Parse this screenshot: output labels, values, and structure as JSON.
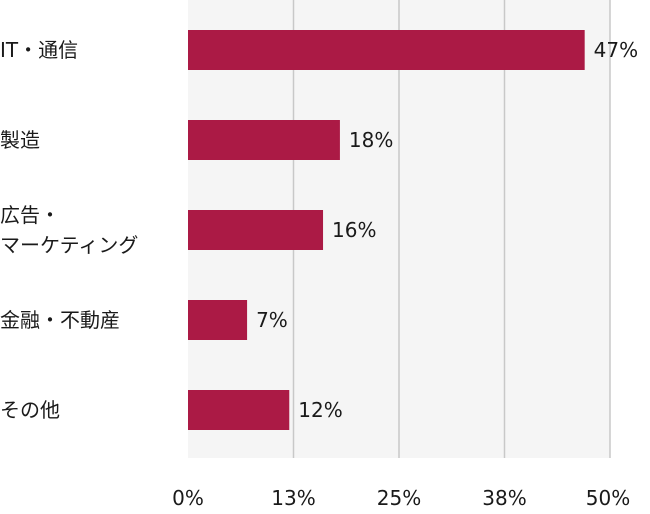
{
  "chart_data": {
    "type": "bar",
    "orientation": "horizontal",
    "categories": [
      "IT・通信",
      "製造",
      "広告・\nマーケティング",
      "金融・不動産",
      "その他"
    ],
    "values": [
      47,
      18,
      16,
      7,
      12
    ],
    "value_labels": [
      "47%",
      "18%",
      "16%",
      "7%",
      "12%"
    ],
    "x_ticks": [
      0,
      12.5,
      25,
      37.5,
      50
    ],
    "x_tick_labels": [
      "0%",
      "13%",
      "25%",
      "38%",
      "50%"
    ],
    "xlim": [
      0,
      50
    ],
    "grid": true,
    "legend": false,
    "title": "",
    "xlabel": "",
    "ylabel": ""
  },
  "colors": {
    "bar": "#ab1a45",
    "plot_background": "#f5f5f5",
    "gridline": "#c8c8c8",
    "text": "#1a1a1a"
  }
}
